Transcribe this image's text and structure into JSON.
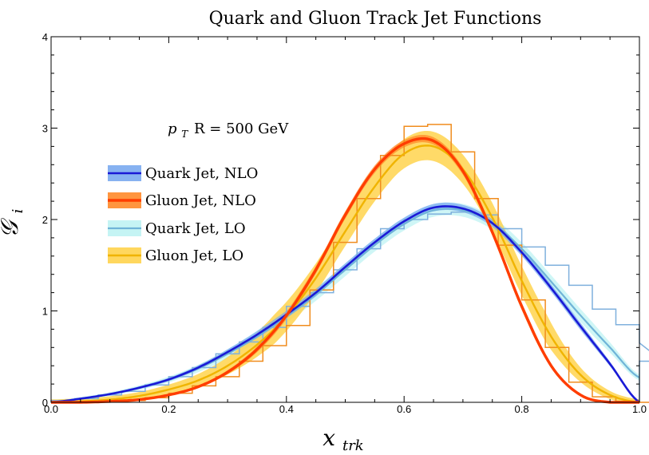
{
  "chart_data": {
    "type": "line",
    "title": "Quark and Gluon Track Jet Functions",
    "xlabel": "x",
    "xlabel_sub": "trk",
    "ylabel": "𝒢",
    "ylabel_sub": "i",
    "annotation": {
      "main": "p",
      "sub": "T",
      "rest": "R = 500 GeV"
    },
    "xlim": [
      0,
      1
    ],
    "ylim": [
      0,
      4
    ],
    "x_ticks": [
      "0.0",
      "0.2",
      "0.4",
      "0.6",
      "0.8",
      "1.0"
    ],
    "y_ticks": [
      "0",
      "1",
      "2",
      "3",
      "4"
    ],
    "grid": false,
    "legend_position": "left",
    "colors": {
      "quark_nlo": "#1a1ad6",
      "quark_nlo_band": "#7aaaf0",
      "gluon_nlo": "#ff3d00",
      "gluon_nlo_band": "#ff8a2a",
      "quark_lo": "#6fb4d8",
      "quark_lo_band": "#bff3f3",
      "gluon_lo": "#f0b400",
      "gluon_lo_band": "#ffd34d",
      "quark_hist": "#7fb0dd",
      "gluon_hist": "#f08c1e"
    },
    "series": [
      {
        "name": "Quark Jet, NLO",
        "x": [
          0,
          0.05,
          0.1,
          0.15,
          0.2,
          0.25,
          0.3,
          0.35,
          0.4,
          0.45,
          0.5,
          0.55,
          0.6,
          0.65,
          0.7,
          0.75,
          0.8,
          0.85,
          0.9,
          0.95,
          1.0
        ],
        "values": [
          0,
          0.04,
          0.09,
          0.16,
          0.25,
          0.38,
          0.55,
          0.74,
          0.96,
          1.2,
          1.48,
          1.75,
          1.98,
          2.13,
          2.12,
          1.96,
          1.64,
          1.25,
          0.83,
          0.42,
          0.0
        ],
        "band": 0.04
      },
      {
        "name": "Gluon Jet, NLO",
        "x": [
          0,
          0.05,
          0.1,
          0.15,
          0.2,
          0.25,
          0.3,
          0.35,
          0.4,
          0.45,
          0.5,
          0.55,
          0.6,
          0.65,
          0.7,
          0.75,
          0.8,
          0.85,
          0.9,
          0.95,
          1.0
        ],
        "values": [
          0,
          0.0,
          0.01,
          0.03,
          0.08,
          0.17,
          0.33,
          0.58,
          0.95,
          1.45,
          2.05,
          2.55,
          2.83,
          2.86,
          2.53,
          1.86,
          1.05,
          0.4,
          0.08,
          0.0,
          0.0
        ],
        "band": 0.04
      },
      {
        "name": "Quark Jet, LO",
        "x": [
          0,
          0.05,
          0.1,
          0.15,
          0.2,
          0.25,
          0.3,
          0.35,
          0.4,
          0.45,
          0.5,
          0.55,
          0.6,
          0.65,
          0.7,
          0.75,
          0.8,
          0.85,
          0.9,
          0.95,
          1.0
        ],
        "values": [
          0,
          0.04,
          0.09,
          0.16,
          0.25,
          0.37,
          0.53,
          0.72,
          0.94,
          1.18,
          1.45,
          1.72,
          1.95,
          2.1,
          2.1,
          1.96,
          1.68,
          1.32,
          0.95,
          0.6,
          0.27
        ],
        "band": 0.07
      },
      {
        "name": "Gluon Jet, LO",
        "x": [
          0,
          0.05,
          0.1,
          0.15,
          0.2,
          0.25,
          0.3,
          0.35,
          0.4,
          0.45,
          0.5,
          0.55,
          0.6,
          0.65,
          0.7,
          0.75,
          0.8,
          0.85,
          0.9,
          0.95,
          1.0
        ],
        "values": [
          0,
          0.01,
          0.03,
          0.07,
          0.14,
          0.24,
          0.4,
          0.63,
          0.94,
          1.36,
          1.87,
          2.36,
          2.72,
          2.8,
          2.55,
          2.02,
          1.33,
          0.72,
          0.3,
          0.08,
          0.0
        ],
        "band": 0.16
      }
    ],
    "histograms": [
      {
        "series": "Quark Jet",
        "bin_width": 0.04,
        "values": [
          0.02,
          0.04,
          0.08,
          0.12,
          0.19,
          0.28,
          0.38,
          0.53,
          0.66,
          0.82,
          1.05,
          1.2,
          1.45,
          1.68,
          1.9,
          2.0,
          2.06,
          2.08,
          2.05,
          1.9,
          1.7,
          1.5,
          1.28,
          1.02,
          0.85,
          0.65,
          0.45
        ]
      },
      {
        "series": "Gluon Jet",
        "bin_width": 0.04,
        "values": [
          0.0,
          0.0,
          0.01,
          0.02,
          0.05,
          0.1,
          0.18,
          0.28,
          0.45,
          0.62,
          0.84,
          1.23,
          1.75,
          2.23,
          2.7,
          3.02,
          3.04,
          2.74,
          2.23,
          1.72,
          1.12,
          0.6,
          0.22,
          0.06,
          0.01,
          0.0,
          0.0
        ]
      }
    ]
  }
}
